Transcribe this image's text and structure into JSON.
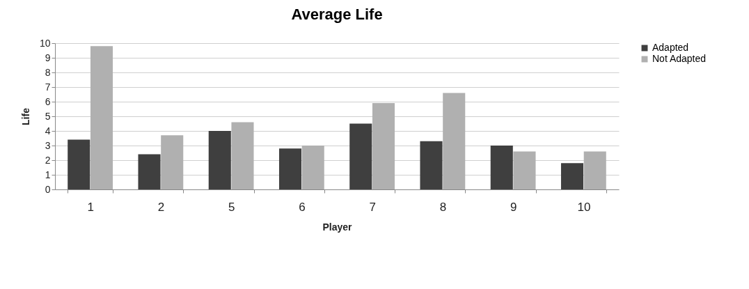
{
  "chart_data": {
    "type": "bar",
    "title": "Average Life",
    "xlabel": "Player",
    "ylabel": "Life",
    "categories": [
      "1",
      "2",
      "5",
      "6",
      "7",
      "8",
      "9",
      "10"
    ],
    "series": [
      {
        "name": "Adapted",
        "color": "#3f3f3f",
        "values": [
          3.4,
          2.4,
          4.0,
          2.8,
          4.5,
          3.3,
          3.0,
          1.8
        ]
      },
      {
        "name": "Not Adapted",
        "color": "#b0b0b0",
        "values": [
          9.8,
          3.7,
          4.6,
          3.0,
          5.9,
          6.6,
          2.6,
          2.6
        ]
      }
    ],
    "ylim": [
      0,
      10
    ],
    "yticks": [
      0,
      1,
      2,
      3,
      4,
      5,
      6,
      7,
      8,
      9,
      10
    ],
    "grid": "y",
    "legend": "right"
  }
}
